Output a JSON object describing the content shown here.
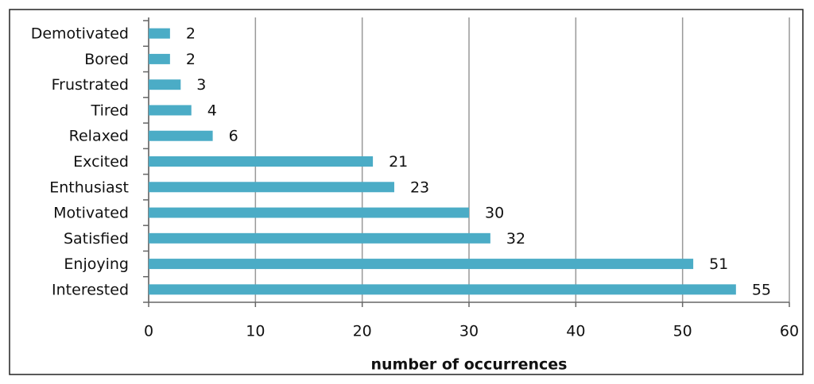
{
  "chart_data": {
    "type": "bar",
    "orientation": "horizontal",
    "categories": [
      "Demotivated",
      "Bored",
      "Frustrated",
      "Tired",
      "Relaxed",
      "Excited",
      "Enthusiast",
      "Motivated",
      "Satisfied",
      "Enjoying",
      "Interested"
    ],
    "values": [
      2,
      2,
      3,
      4,
      6,
      21,
      23,
      30,
      32,
      51,
      55
    ],
    "color": "#4bacc6",
    "x_label": "number of occurrences",
    "xlim": [
      0,
      60
    ],
    "xticks": [
      0,
      10,
      20,
      30,
      40,
      50,
      60
    ],
    "grid": true
  }
}
